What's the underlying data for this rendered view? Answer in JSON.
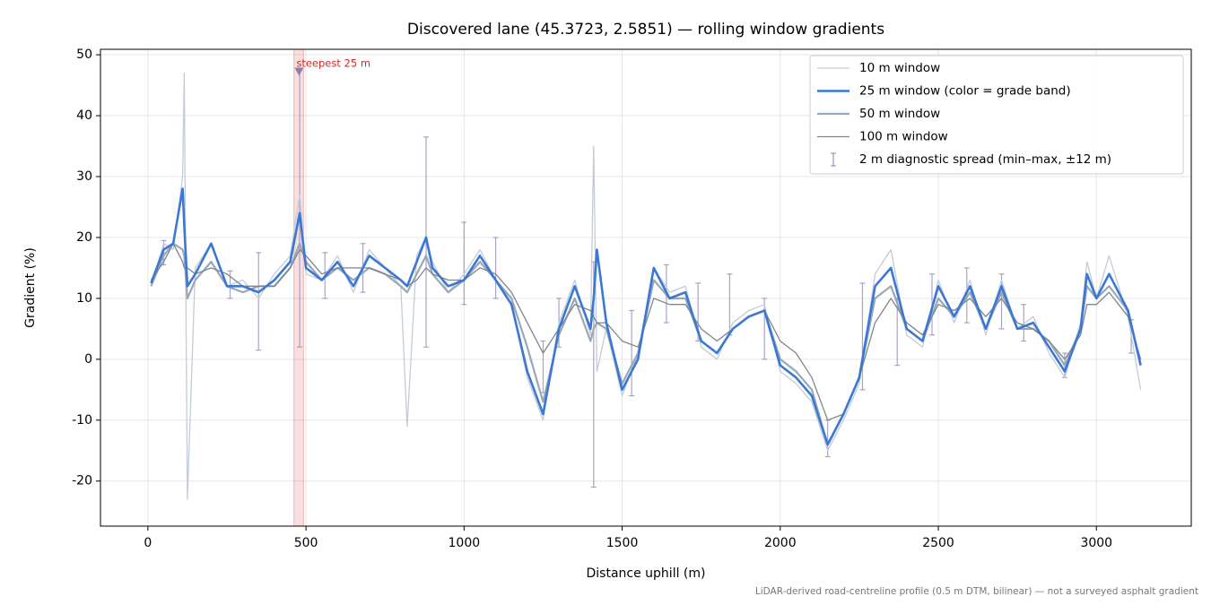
{
  "chart_data": {
    "type": "line",
    "title": "Discovered lane (45.3723, 2.5851) — rolling window gradients",
    "xlabel": "Distance uphill (m)",
    "ylabel": "Gradient (%)",
    "footnote": "LiDAR-derived road-centreline profile (0.5 m DTM, bilinear) — not a surveyed asphalt gradient",
    "xlim": [
      -150,
      3300
    ],
    "ylim": [
      -27.4,
      50.9
    ],
    "xticks": [
      0,
      500,
      1000,
      1500,
      2000,
      2500,
      3000
    ],
    "yticks": [
      -20,
      -10,
      0,
      10,
      20,
      30,
      40,
      50
    ],
    "grid": true,
    "legend": "upper right",
    "x": [
      10,
      50,
      80,
      110,
      115,
      125,
      150,
      200,
      250,
      300,
      350,
      400,
      450,
      480,
      500,
      550,
      600,
      650,
      700,
      750,
      800,
      820,
      850,
      880,
      900,
      950,
      1000,
      1050,
      1100,
      1150,
      1200,
      1250,
      1300,
      1350,
      1400,
      1410,
      1420,
      1450,
      1500,
      1550,
      1600,
      1650,
      1700,
      1750,
      1800,
      1850,
      1900,
      1950,
      2000,
      2050,
      2100,
      2150,
      2200,
      2250,
      2300,
      2350,
      2400,
      2450,
      2500,
      2550,
      2600,
      2650,
      2700,
      2750,
      2800,
      2850,
      2900,
      2950,
      2970,
      3000,
      3040,
      3100,
      3140
    ],
    "series": [
      {
        "name": "10 m window",
        "color": "#c3cbd7",
        "values": [
          12,
          19,
          18,
          30,
          47,
          -23,
          15,
          19,
          12,
          13,
          10,
          14,
          17,
          27,
          14,
          13,
          17,
          11,
          18,
          15,
          12,
          -11,
          17,
          20,
          16,
          11,
          14,
          18,
          13,
          9,
          -3,
          -10,
          6,
          13,
          4,
          35,
          -2,
          5,
          -6,
          1,
          15,
          11,
          12,
          2,
          0,
          6,
          8,
          9,
          -2,
          -4,
          -7,
          -15,
          -10,
          -4,
          14,
          18,
          4,
          2,
          13,
          6,
          13,
          4,
          13,
          5,
          7,
          1,
          -3,
          6,
          16,
          10,
          17,
          7,
          -5
        ]
      },
      {
        "name": "25 m window (color = grade band)",
        "color": "#3a78d4",
        "values": [
          12.5,
          18,
          19,
          28,
          22,
          12,
          14,
          19,
          12,
          12,
          11,
          13,
          16,
          24,
          15,
          13,
          16,
          12,
          17,
          15,
          13,
          12,
          16,
          20,
          15,
          12,
          13,
          17,
          13,
          9,
          -2,
          -9,
          5,
          12,
          5,
          10,
          18,
          6,
          -5,
          0,
          15,
          10,
          11,
          3,
          1,
          5,
          7,
          8,
          -1,
          -3,
          -6,
          -14,
          -9,
          -3,
          12,
          15,
          5,
          3,
          12,
          7,
          12,
          5,
          12,
          5,
          6,
          2,
          -2,
          5,
          14,
          10,
          14,
          8,
          -1
        ]
      },
      {
        "name": "50 m window",
        "color": "#9aa7b7",
        "values": [
          12,
          17,
          19,
          18,
          17,
          10,
          13,
          16,
          12,
          11,
          12,
          12,
          15,
          19,
          16,
          13,
          15,
          13,
          15,
          14,
          12,
          11,
          14,
          17,
          14,
          11,
          13,
          16,
          13,
          10,
          2,
          -7,
          4,
          10,
          3,
          5,
          6,
          5,
          -4,
          1,
          13,
          10,
          10,
          3,
          1,
          5,
          7,
          8,
          0,
          -2,
          -5,
          -14,
          -9,
          -3,
          10,
          12,
          5,
          3,
          10,
          7,
          11,
          5,
          11,
          5,
          5,
          3,
          -1,
          5,
          12,
          10,
          12,
          8,
          -1
        ]
      },
      {
        "name": "100 m window",
        "color": "#7d8590",
        "values": [
          13,
          16,
          19,
          16,
          15,
          15,
          14,
          15,
          14,
          12,
          12,
          12,
          15,
          18,
          17,
          14,
          15,
          15,
          15,
          14,
          13,
          12,
          13,
          15,
          14,
          13,
          13,
          15,
          14,
          11,
          6,
          1,
          5,
          9,
          8,
          7,
          6,
          6,
          3,
          2,
          10,
          9,
          9,
          5,
          3,
          5,
          7,
          8,
          3,
          1,
          -3,
          -10,
          -9,
          -3,
          6,
          10,
          6,
          4,
          9,
          8,
          10,
          7,
          10,
          6,
          5,
          3,
          0,
          4,
          9,
          9,
          11,
          7,
          0
        ]
      }
    ],
    "spread": {
      "name": "2 m diagnostic spread (min–max, ±12 m)",
      "color": "#9a94bb",
      "x": [
        50,
        260,
        350,
        480,
        560,
        680,
        880,
        1000,
        1100,
        1250,
        1300,
        1410,
        1530,
        1640,
        1740,
        1840,
        1950,
        2150,
        2260,
        2370,
        2480,
        2590,
        2700,
        2770,
        2900,
        3110
      ],
      "low": [
        15.5,
        10,
        1.5,
        2,
        10,
        11,
        2,
        9,
        10,
        -5.5,
        2,
        -21,
        -6,
        6,
        3,
        4,
        0,
        -16,
        -5,
        -1,
        4,
        6,
        5,
        3,
        -3,
        1
      ],
      "high": [
        19.5,
        14.5,
        17.5,
        47.5,
        17.5,
        19,
        36.5,
        22.5,
        20,
        3,
        10,
        16,
        8,
        15.5,
        12.5,
        14,
        10,
        -10,
        12.5,
        10,
        14,
        15,
        14,
        9,
        1,
        6.5
      ]
    },
    "highlight": {
      "label": "steepest 25 m",
      "color": "#d62728",
      "span": [
        462,
        492
      ],
      "point": [
        478,
        47
      ]
    }
  }
}
